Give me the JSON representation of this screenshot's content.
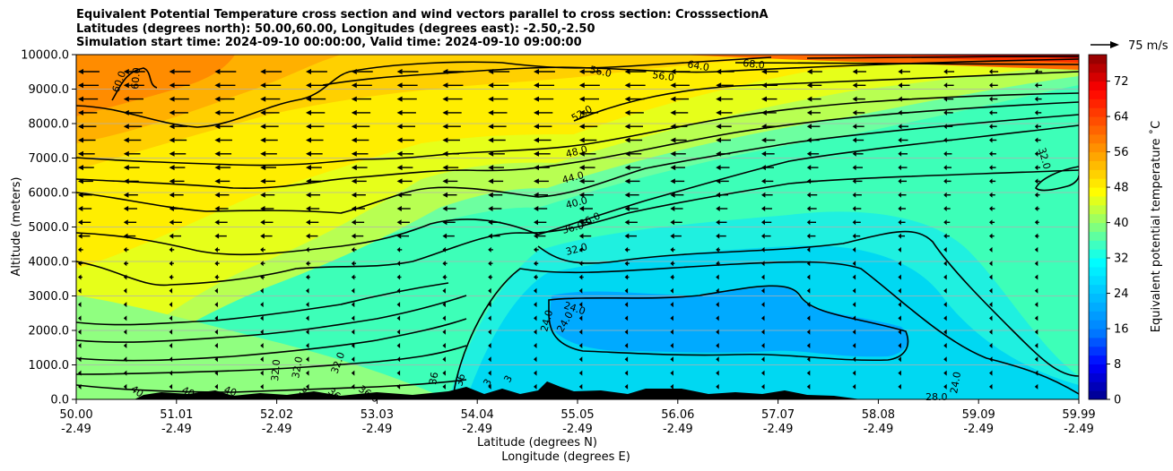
{
  "chart_data": {
    "type": "heatmap",
    "title_lines": [
      "Equivalent Potential Temperature cross section and wind vectors parallel to cross section: CrosssectionA",
      "Latitudes (degrees north): 50.00,60.00, Longitudes (degrees east): -2.50,-2.50",
      "Simulation start time: 2024-09-10 00:00:00, Valid time: 2024-09-10 09:00:00"
    ],
    "ylabel": "Altitude (meters)",
    "xlabel_lines": [
      "Latitude (degrees N)",
      "Longitude (degrees E)"
    ],
    "y_ticks": [
      "0.0",
      "1000.0",
      "2000.0",
      "3000.0",
      "4000.0",
      "5000.0",
      "6000.0",
      "7000.0",
      "8000.0",
      "9000.0",
      "10000.0"
    ],
    "ylim": [
      0,
      10000
    ],
    "x_ticks_lat": [
      "50.00",
      "51.01",
      "52.02",
      "53.03",
      "54.04",
      "55.05",
      "56.06",
      "57.07",
      "58.08",
      "59.09",
      "59.99"
    ],
    "x_ticks_lon": [
      "-2.49",
      "-2.49",
      "-2.49",
      "-2.49",
      "-2.49",
      "-2.49",
      "-2.49",
      "-2.49",
      "-2.49",
      "-2.49",
      "-2.49"
    ],
    "xlim_lat": [
      50.0,
      59.99
    ],
    "grid": "horizontal",
    "colorbar": {
      "label": "Equivalent potential temperature $^\\circ$C",
      "label_display": "Equivalent potential temperature ˚C",
      "ticks": [
        "0",
        "8",
        "16",
        "24",
        "32",
        "40",
        "48",
        "56",
        "64",
        "72"
      ],
      "range": [
        0,
        78
      ],
      "colors": [
        "#00008b",
        "#0000ff",
        "#0080ff",
        "#00bfff",
        "#00ffff",
        "#7fff7f",
        "#ffff00",
        "#ffaa00",
        "#ff5500",
        "#ff0000",
        "#8b0000"
      ]
    },
    "quiver_key": {
      "label": "75 m/s",
      "speed": 75
    },
    "contour_levels": [
      24,
      28,
      32,
      36,
      40,
      44,
      48,
      52,
      56,
      60,
      64,
      68,
      72
    ],
    "contour_labels": [
      "60.0",
      "60.0",
      "56.0",
      "56.0",
      "64.0",
      "68.0",
      "52.0",
      "48.0",
      "44.0",
      "40.0",
      "36.0",
      "36.0",
      "32.0",
      "32.0",
      "32.0",
      "32.0",
      "32.0",
      "24.0",
      "24.0",
      "24.0",
      "24.0",
      "28.0",
      "40",
      "40",
      "40",
      "36",
      "36",
      "36.0",
      "36",
      "36",
      "3",
      "3"
    ],
    "features": {
      "terrain": "black orography along the bottom between roughly 50.5 and 58.0 degrees N",
      "warm_region": "theta-e 56-64 C in upper left, 64-76 C along top right",
      "cold_region": "theta-e 20-26 C pool between 55.0 and 58.3 degrees N, 500-3000 m"
    }
  }
}
